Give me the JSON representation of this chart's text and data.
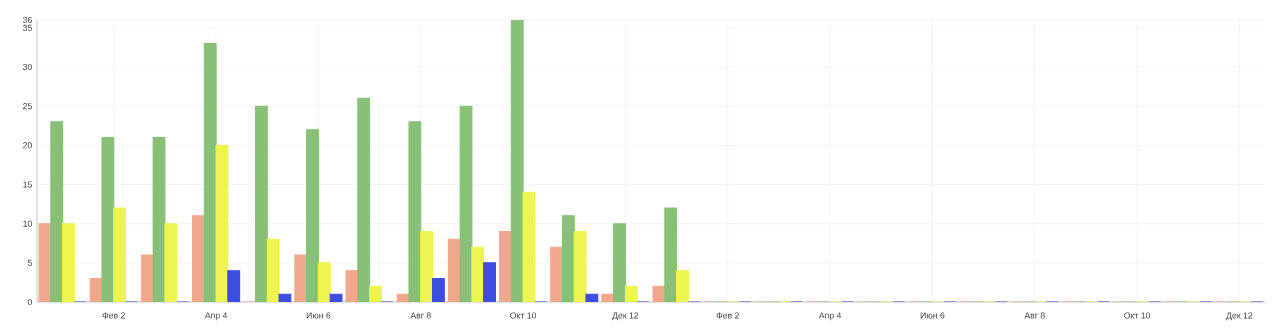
{
  "chart_data": {
    "type": "bar",
    "categories": [
      null,
      "Фев 2",
      null,
      "Апр 4",
      null,
      "Июн 6",
      null,
      "Авг 8",
      null,
      "Окт 10",
      null,
      "Дек 12",
      null,
      "Фев 2",
      null,
      "Апр 4",
      null,
      "Июн 6",
      null,
      "Авг 8",
      null,
      "Окт 10",
      null,
      "Дек 12"
    ],
    "series": [
      {
        "color": "#f0a88c",
        "values": [
          10,
          3,
          6,
          11,
          0,
          6,
          4,
          1,
          8,
          9,
          7,
          1,
          2,
          0,
          0,
          0,
          0,
          0,
          0,
          0,
          0,
          0,
          0,
          0
        ]
      },
      {
        "color": "#88c078",
        "values": [
          23,
          21,
          21,
          33,
          25,
          22,
          26,
          23,
          25,
          36,
          11,
          10,
          12,
          0,
          0,
          0,
          0,
          0,
          0,
          0,
          0,
          0,
          0,
          0
        ]
      },
      {
        "color": "#eef550",
        "values": [
          10,
          12,
          10,
          20,
          8,
          5,
          2,
          9,
          7,
          14,
          9,
          2,
          4,
          0,
          0,
          0,
          0,
          0,
          0,
          0,
          0,
          0,
          0,
          0
        ]
      },
      {
        "color": "#3c4ee0",
        "values": [
          0,
          0,
          0,
          4,
          1,
          1,
          0,
          3,
          5,
          0,
          1,
          0,
          0,
          0,
          0,
          0,
          0,
          0,
          0,
          0,
          0,
          0,
          0,
          0
        ]
      }
    ],
    "ylim": [
      0,
      36
    ],
    "yticks": [
      0,
      5,
      10,
      15,
      20,
      25,
      30,
      35,
      36
    ],
    "grid": true
  }
}
